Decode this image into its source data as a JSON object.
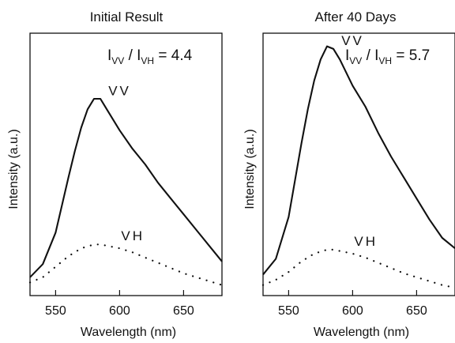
{
  "chart_data": [
    {
      "type": "line",
      "title": "Initial Result",
      "xlabel": "Wavelength (nm)",
      "ylabel": "Intensity (a.u.)",
      "xlim": [
        530,
        680
      ],
      "ylim": [
        0,
        1.0
      ],
      "xticks": [
        550,
        600,
        650
      ],
      "ytick_labels_shown": false,
      "ratio": {
        "i": "I",
        "sub1": "VV",
        "slash": " / ",
        "sub2": "VH",
        "eq": " = 4.4"
      },
      "series": [
        {
          "name": "VV",
          "style": "solid",
          "x": [
            530,
            540,
            550,
            560,
            565,
            570,
            575,
            580,
            585,
            590,
            595,
            600,
            610,
            620,
            630,
            640,
            650,
            660,
            670,
            680
          ],
          "y": [
            0.07,
            0.12,
            0.24,
            0.45,
            0.55,
            0.64,
            0.71,
            0.75,
            0.75,
            0.71,
            0.67,
            0.63,
            0.56,
            0.5,
            0.43,
            0.37,
            0.31,
            0.25,
            0.19,
            0.13
          ]
        },
        {
          "name": "VH",
          "style": "dotted",
          "x": [
            530,
            540,
            550,
            560,
            570,
            580,
            585,
            590,
            600,
            610,
            620,
            630,
            640,
            650,
            660,
            670,
            680
          ],
          "y": [
            0.05,
            0.07,
            0.11,
            0.15,
            0.18,
            0.195,
            0.195,
            0.19,
            0.18,
            0.165,
            0.145,
            0.125,
            0.105,
            0.085,
            0.07,
            0.055,
            0.04
          ]
        }
      ]
    },
    {
      "type": "line",
      "title": "After 40 Days",
      "xlabel": "Wavelength (nm)",
      "ylabel": "Intensity (a.u.)",
      "xlim": [
        530,
        680
      ],
      "ylim": [
        0,
        1.0
      ],
      "xticks": [
        550,
        600,
        650
      ],
      "ytick_labels_shown": false,
      "ratio": {
        "i": "I",
        "sub1": "VV",
        "slash": " / ",
        "sub2": "VH",
        "eq": " = 5.7"
      },
      "series": [
        {
          "name": "VV",
          "style": "solid",
          "x": [
            530,
            540,
            550,
            560,
            565,
            570,
            575,
            580,
            585,
            590,
            595,
            600,
            610,
            620,
            630,
            640,
            650,
            660,
            670,
            680
          ],
          "y": [
            0.08,
            0.14,
            0.3,
            0.58,
            0.71,
            0.82,
            0.9,
            0.95,
            0.94,
            0.9,
            0.85,
            0.8,
            0.72,
            0.62,
            0.53,
            0.45,
            0.37,
            0.29,
            0.22,
            0.18
          ]
        },
        {
          "name": "VH",
          "style": "dotted",
          "x": [
            530,
            540,
            550,
            560,
            570,
            580,
            585,
            590,
            600,
            610,
            620,
            630,
            640,
            650,
            660,
            670,
            680
          ],
          "y": [
            0.04,
            0.06,
            0.09,
            0.13,
            0.16,
            0.175,
            0.175,
            0.17,
            0.16,
            0.145,
            0.125,
            0.105,
            0.085,
            0.07,
            0.055,
            0.04,
            0.03
          ]
        }
      ]
    }
  ]
}
